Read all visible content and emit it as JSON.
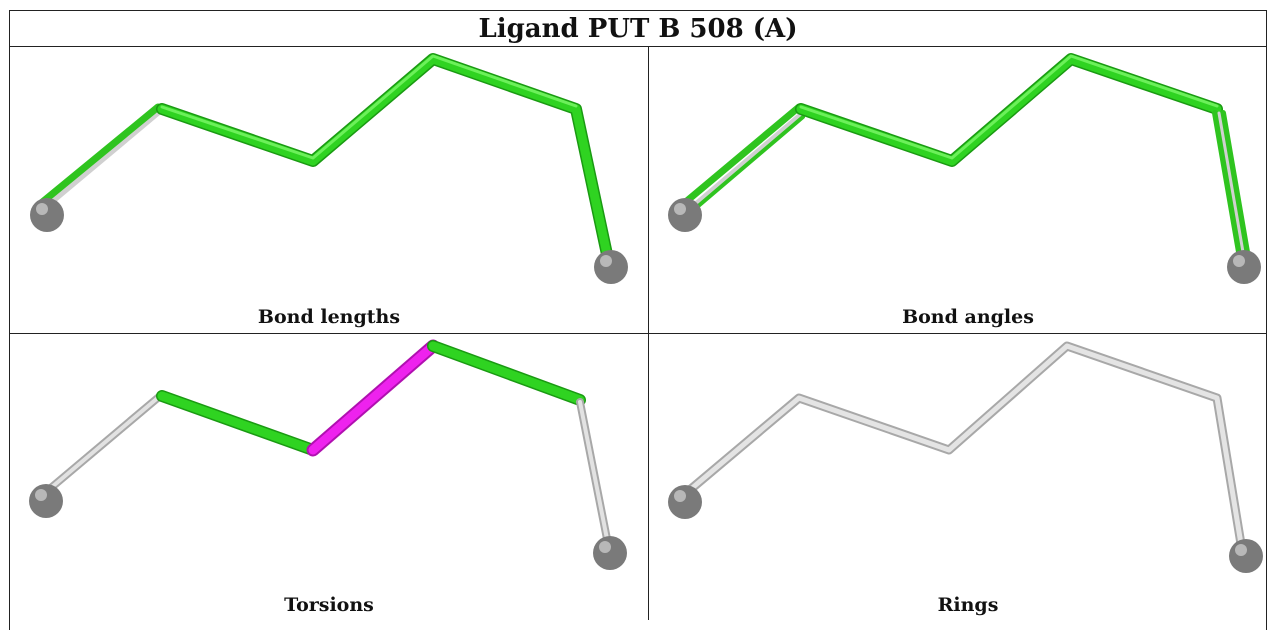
{
  "title": "Ligand PUT B 508 (A)",
  "panels": [
    {
      "caption": "Bond lengths"
    },
    {
      "caption": "Bond angles"
    },
    {
      "caption": "Torsions"
    },
    {
      "caption": "Rings"
    }
  ],
  "colors": {
    "ok_bond": "#2ecc1e",
    "outlier_bond": "#ee22ee",
    "unchecked_bond": "#c8c8c8",
    "atom": "#808080"
  }
}
